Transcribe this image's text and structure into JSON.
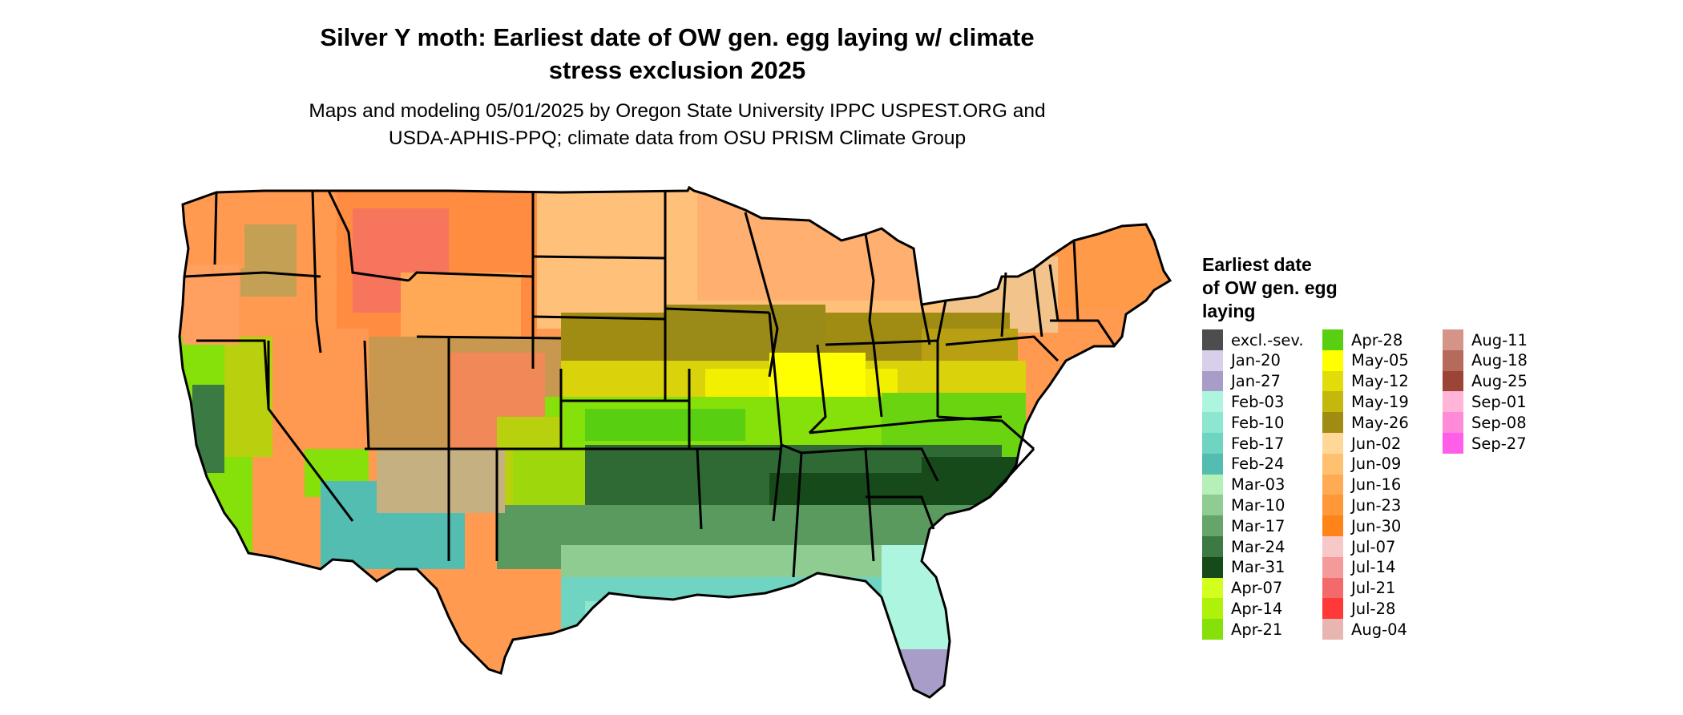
{
  "title_line1": "Silver Y moth: Earliest date of OW gen. egg laying w/ climate",
  "title_line2": "stress exclusion 2025",
  "subtitle_line1": "Maps and modeling 05/01/2025 by Oregon State University IPPC USPEST.ORG and",
  "subtitle_line2": "USDA-APHIS-PPQ; climate data from OSU PRISM Climate Group",
  "legend": {
    "title_line1": "Earliest date",
    "title_line2": "of OW gen. egg",
    "title_line3": "laying",
    "items": [
      {
        "label": "excl.-sev.",
        "color": "#4d4d4d"
      },
      {
        "label": "Jan-20",
        "color": "#d8d0ea"
      },
      {
        "label": "Jan-27",
        "color": "#a89cc9"
      },
      {
        "label": "Feb-03",
        "color": "#aef5e0"
      },
      {
        "label": "Feb-10",
        "color": "#8de6cf"
      },
      {
        "label": "Feb-17",
        "color": "#6fd4c2"
      },
      {
        "label": "Feb-24",
        "color": "#52bdb0"
      },
      {
        "label": "Mar-03",
        "color": "#b4f0b8"
      },
      {
        "label": "Mar-10",
        "color": "#8fcc91"
      },
      {
        "label": "Mar-17",
        "color": "#65a56a"
      },
      {
        "label": "Mar-24",
        "color": "#3b7a42"
      },
      {
        "label": "Mar-31",
        "color": "#164a1a"
      },
      {
        "label": "Apr-07",
        "color": "#d2ff1e"
      },
      {
        "label": "Apr-14",
        "color": "#aef20c"
      },
      {
        "label": "Apr-21",
        "color": "#86e00a"
      },
      {
        "label": "Apr-28",
        "color": "#58cf10"
      },
      {
        "label": "May-05",
        "color": "#ffff00"
      },
      {
        "label": "May-12",
        "color": "#e2dd0a"
      },
      {
        "label": "May-19",
        "color": "#c4b80c"
      },
      {
        "label": "May-26",
        "color": "#a08c12"
      },
      {
        "label": "Jun-02",
        "color": "#ffd898"
      },
      {
        "label": "Jun-09",
        "color": "#ffc070"
      },
      {
        "label": "Jun-16",
        "color": "#ffaa55"
      },
      {
        "label": "Jun-23",
        "color": "#ff9838"
      },
      {
        "label": "Jun-30",
        "color": "#ff8418"
      },
      {
        "label": "Jul-07",
        "color": "#f7c8c8"
      },
      {
        "label": "Jul-14",
        "color": "#f59a9a"
      },
      {
        "label": "Jul-21",
        "color": "#f46a6a"
      },
      {
        "label": "Jul-28",
        "color": "#ff3838"
      },
      {
        "label": "Aug-04",
        "color": "#e8b6b0"
      },
      {
        "label": "Aug-11",
        "color": "#d49488"
      },
      {
        "label": "Aug-18",
        "color": "#b66a5c"
      },
      {
        "label": "Aug-25",
        "color": "#9c4436"
      },
      {
        "label": "Sep-01",
        "color": "#ffb4d8"
      },
      {
        "label": "Sep-08",
        "color": "#ff8ad8"
      },
      {
        "label": "Sep-27",
        "color": "#ff5ee8"
      }
    ]
  }
}
